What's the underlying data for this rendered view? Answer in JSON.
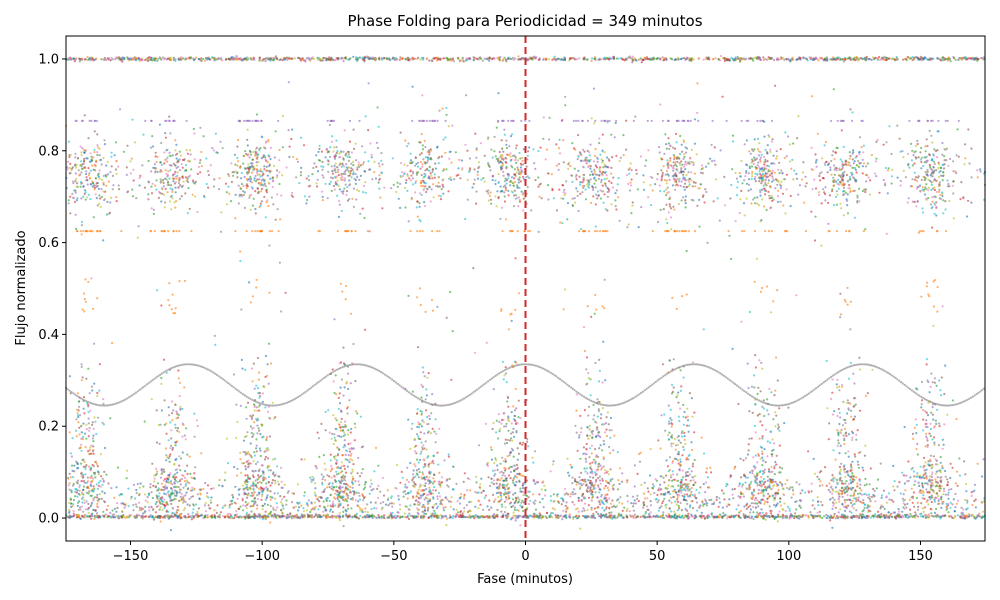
{
  "chart_data": {
    "type": "scatter",
    "title": "Phase Folding para Periodicidad = 349 minutos",
    "xlabel": "Fase (minutos)",
    "ylabel": "Flujo normalizado",
    "xlim": [
      -174.5,
      174.5
    ],
    "ylim": [
      -0.05,
      1.05
    ],
    "xticks": [
      -150,
      -100,
      -50,
      0,
      50,
      100,
      150
    ],
    "xtick_labels": [
      "−150",
      "−100",
      "−50",
      "0",
      "50",
      "100",
      "150"
    ],
    "yticks": [
      0.0,
      0.2,
      0.4,
      0.6,
      0.8,
      1.0
    ],
    "ytick_labels": [
      "0.0",
      "0.2",
      "0.4",
      "0.6",
      "0.8",
      "1.0"
    ],
    "grid": false,
    "reference_line": {
      "x": 0,
      "color": "#d62728",
      "style": "dashed"
    },
    "series_colors": [
      "#1f77b4",
      "#ff7f0e",
      "#2ca02c",
      "#d62728",
      "#9467bd",
      "#8c564b",
      "#e377c2",
      "#7f7f7f",
      "#bcbd22",
      "#17becf"
    ],
    "pulse_centers": [
      -166,
      -134,
      -102,
      -70,
      -38,
      -6,
      26,
      58,
      90,
      122,
      154
    ],
    "clusters": [
      {
        "y": 0.75,
        "spread": 0.035,
        "color_index": -1
      },
      {
        "y": 0.07,
        "spread": 0.03,
        "color_index": -1
      },
      {
        "y": 0.18,
        "spread": 0.05,
        "color_index": -1
      }
    ],
    "flat_levels": [
      {
        "y": 1.0,
        "color_index": -1
      },
      {
        "y": 0.003,
        "color_index": -1
      },
      {
        "y": 0.865,
        "color_index": 4
      },
      {
        "y": 0.625,
        "color_index": 1
      }
    ],
    "wave_series": {
      "color_index": 7,
      "mean": 0.29,
      "amplitude": 0.045,
      "period": 64,
      "phase": 0
    },
    "point_count": 9000,
    "point_alpha": 0.6
  }
}
